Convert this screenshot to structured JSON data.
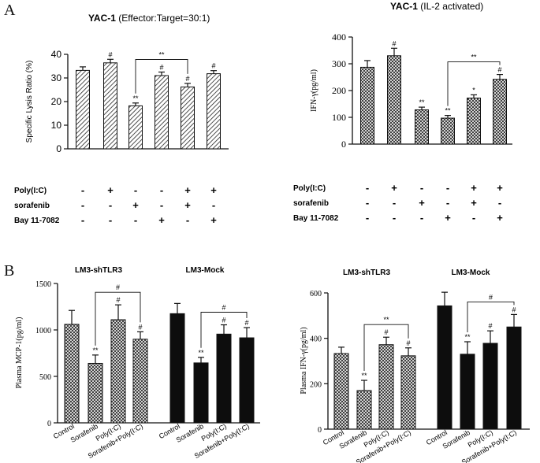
{
  "panel_labels": {
    "a": "A",
    "b": "B"
  },
  "chart_data": [
    {
      "id": "a1",
      "type": "bar",
      "title_bold": "YAC-1",
      "title_rest": " (Effector:Target=30:1)",
      "ylabel": "Specific Lysis Ratio (%)",
      "ylim": [
        0,
        40
      ],
      "yticks": [
        0,
        10,
        20,
        30,
        40
      ],
      "values": [
        33.2,
        36.4,
        18.2,
        31.0,
        26.2,
        31.8
      ],
      "errors": [
        1.5,
        1.5,
        1.2,
        1.5,
        1.5,
        1.3
      ],
      "marks": [
        "",
        "#",
        "**",
        "#",
        "#",
        "#"
      ],
      "bracket": {
        "from": 2,
        "to": 4,
        "label": "**"
      },
      "fill": "hatch",
      "treatment_rows": [
        {
          "label": "Poly(I:C)",
          "signs": [
            "-",
            "+",
            "-",
            "-",
            "+",
            "+"
          ]
        },
        {
          "label": "sorafenib",
          "signs": [
            "-",
            "-",
            "+",
            "-",
            "+",
            "-"
          ]
        },
        {
          "label": "Bay 11-7082",
          "signs": [
            "-",
            "-",
            "-",
            "+",
            "-",
            "+"
          ]
        }
      ]
    },
    {
      "id": "a2",
      "type": "bar",
      "title_bold": "YAC-1",
      "title_rest": " (IL-2 activated)",
      "ylabel": "IFN-γ(pg/ml)",
      "ylim": [
        0,
        400
      ],
      "yticks": [
        0,
        100,
        200,
        300,
        400
      ],
      "values": [
        287,
        330,
        128,
        97,
        172,
        242
      ],
      "errors": [
        25,
        28,
        10,
        10,
        12,
        18
      ],
      "marks": [
        "",
        "#",
        "**",
        "**",
        "*",
        "#"
      ],
      "bracket": {
        "from": 3,
        "to": 5,
        "label": "**"
      },
      "fill": "cross",
      "treatment_rows": [
        {
          "label": "Poly(I:C)",
          "signs": [
            "-",
            "+",
            "-",
            "-",
            "+",
            "+"
          ]
        },
        {
          "label": "sorafenib",
          "signs": [
            "-",
            "-",
            "+",
            "-",
            "+",
            "-"
          ]
        },
        {
          "label": "Bay 11-7082",
          "signs": [
            "-",
            "-",
            "-",
            "+",
            "-",
            "+"
          ]
        }
      ]
    },
    {
      "id": "b1",
      "type": "bar",
      "ylabel": "Plasma MCP-1(pg/ml)",
      "ylim": [
        0,
        1500
      ],
      "yticks": [
        0,
        500,
        1000,
        1500
      ],
      "groups": [
        "LM3-shTLR3",
        "LM3-Mock"
      ],
      "categories": [
        "Control",
        "Sorafenib",
        "Poly(I:C)",
        "Sorafenib+Poly(I:C)",
        "Control",
        "Sorafenib",
        "Poly(I:C)",
        "Sorafenib+Poly(I:C)"
      ],
      "values": [
        1060,
        640,
        1110,
        900,
        1175,
        645,
        955,
        915
      ],
      "errors": [
        150,
        90,
        160,
        80,
        110,
        60,
        100,
        110
      ],
      "marks": [
        "",
        "**",
        "#",
        "#",
        "",
        "**",
        "#",
        "#"
      ],
      "fills": [
        "cross",
        "cross",
        "cross",
        "cross",
        "solid",
        "solid",
        "solid",
        "solid"
      ],
      "brackets": [
        {
          "from": 1,
          "to": 3,
          "label": "#"
        },
        {
          "from": 5,
          "to": 7,
          "label": "#"
        }
      ]
    },
    {
      "id": "b2",
      "type": "bar",
      "ylabel": "Plasma IFN-γ(pg/ml)",
      "ylim": [
        0,
        600
      ],
      "yticks": [
        0,
        200,
        400,
        600
      ],
      "groups": [
        "LM3-shTLR3",
        "LM3-Mock"
      ],
      "categories": [
        "Control",
        "Sorafenib",
        "Poly(I:C)",
        "Sorafenib+Poly(I:C)",
        "Control",
        "Sorafenib",
        "Poly(I:C)",
        "Sorafenib+Poly(I:C)"
      ],
      "values": [
        333,
        170,
        372,
        323,
        543,
        330,
        378,
        450
      ],
      "errors": [
        28,
        45,
        33,
        35,
        60,
        55,
        55,
        55
      ],
      "marks": [
        "",
        "**",
        "#",
        "#",
        "",
        "**",
        "#",
        "#"
      ],
      "fills": [
        "cross",
        "cross",
        "cross",
        "cross",
        "solid",
        "solid",
        "solid",
        "solid"
      ],
      "brackets": [
        {
          "from": 1,
          "to": 3,
          "label": "**"
        },
        {
          "from": 5,
          "to": 7,
          "label": "#"
        }
      ]
    }
  ]
}
